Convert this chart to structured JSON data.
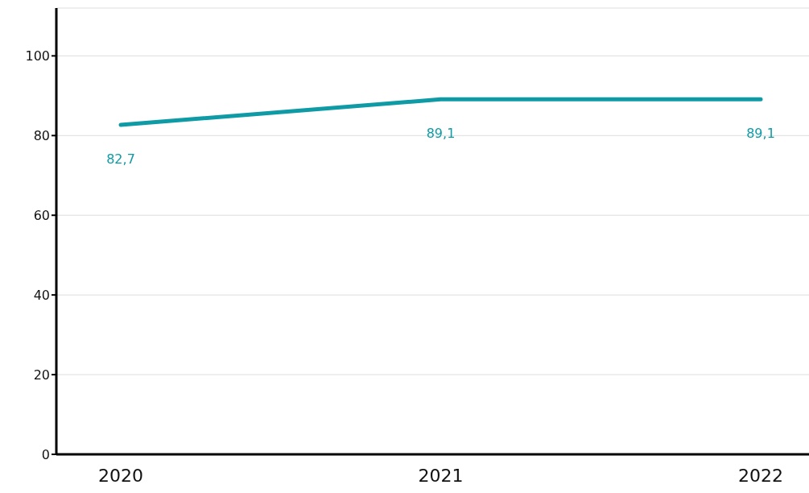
{
  "chart_data": {
    "type": "line",
    "categories": [
      "2020",
      "2021",
      "2022"
    ],
    "series": [
      {
        "color": "#0e9ba6",
        "values": [
          82.7,
          89.1,
          89.1
        ],
        "value_labels": [
          "82,7",
          "89,1",
          "89,1"
        ]
      }
    ],
    "ylim": [
      0,
      112
    ],
    "yticks": [
      0,
      20,
      40,
      60,
      80,
      100
    ],
    "grid": "y",
    "marker": "none",
    "line_style": "solid"
  }
}
